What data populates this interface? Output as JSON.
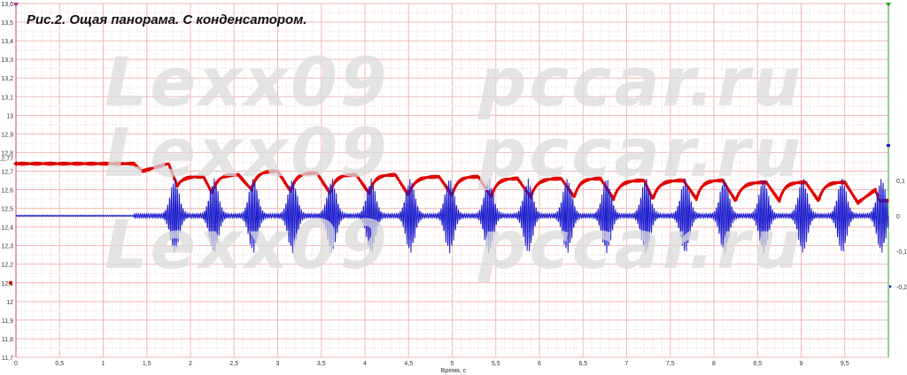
{
  "chart_data": {
    "type": "line",
    "title": "Рис.2. Ощая панорама. С конденсатором.",
    "xlabel": "Время, с",
    "xlim": [
      0,
      10
    ],
    "x_ticks": [
      "0",
      "0,5",
      "1",
      "1,5",
      "2",
      "2,5",
      "3",
      "3,5",
      "4",
      "4,5",
      "5",
      "5,5",
      "6",
      "6,5",
      "7",
      "7,5",
      "8",
      "8,5",
      "9",
      "9,5"
    ],
    "ylim_left": [
      11.7,
      13.6
    ],
    "y_ticks_left": [
      "13,6",
      "13,5",
      "13,4",
      "13,3",
      "13,2",
      "13,1",
      "13",
      "12,9",
      "12,8",
      "12,7",
      "12,6",
      "12,5",
      "12,4",
      "12,3",
      "12,2",
      "12,1",
      "12",
      "11,9",
      "11,8",
      "11,7"
    ],
    "ylim_right": [
      -0.4,
      0.6
    ],
    "y_ticks_right": [
      "0,1",
      "0",
      "-0,1",
      "-0,2"
    ],
    "grid": true,
    "series": [
      {
        "color": "#e00000",
        "axis": "left",
        "points": [
          [
            0,
            12.74
          ],
          [
            1.35,
            12.74
          ],
          [
            1.45,
            12.7
          ],
          [
            1.6,
            12.72
          ],
          [
            1.75,
            12.74
          ],
          [
            1.85,
            12.62
          ],
          [
            2.15,
            12.67
          ],
          [
            2.25,
            12.58
          ],
          [
            2.55,
            12.68
          ],
          [
            2.7,
            12.6
          ],
          [
            3.0,
            12.7
          ],
          [
            3.15,
            12.59
          ],
          [
            3.45,
            12.69
          ],
          [
            3.6,
            12.58
          ],
          [
            3.9,
            12.68
          ],
          [
            4.05,
            12.58
          ],
          [
            4.35,
            12.68
          ],
          [
            4.5,
            12.57
          ],
          [
            4.85,
            12.67
          ],
          [
            5.0,
            12.57
          ],
          [
            5.3,
            12.67
          ],
          [
            5.45,
            12.56
          ],
          [
            5.75,
            12.66
          ],
          [
            5.9,
            12.56
          ],
          [
            6.25,
            12.66
          ],
          [
            6.4,
            12.56
          ],
          [
            6.7,
            12.66
          ],
          [
            6.85,
            12.55
          ],
          [
            7.2,
            12.65
          ],
          [
            7.3,
            12.55
          ],
          [
            7.65,
            12.65
          ],
          [
            7.8,
            12.55
          ],
          [
            8.1,
            12.65
          ],
          [
            8.25,
            12.54
          ],
          [
            8.6,
            12.64
          ],
          [
            8.75,
            12.54
          ],
          [
            9.05,
            12.64
          ],
          [
            9.2,
            12.54
          ],
          [
            9.5,
            12.64
          ],
          [
            9.65,
            12.53
          ],
          [
            9.85,
            12.6
          ],
          [
            9.9,
            12.54
          ],
          [
            10,
            12.54
          ]
        ]
      },
      {
        "color": "#1a1acc",
        "axis": "right",
        "baseline": 0,
        "burst_centers": [
          1.82,
          2.27,
          2.72,
          3.17,
          3.62,
          4.07,
          4.52,
          4.97,
          5.42,
          5.87,
          6.32,
          6.77,
          7.22,
          7.67,
          8.12,
          8.57,
          9.02,
          9.47,
          9.92
        ],
        "burst_amplitude": 0.1
      }
    ],
    "annotations": {
      "left_axis_start_label": "12,77",
      "left_axis_marker_value": 12.1
    }
  }
}
